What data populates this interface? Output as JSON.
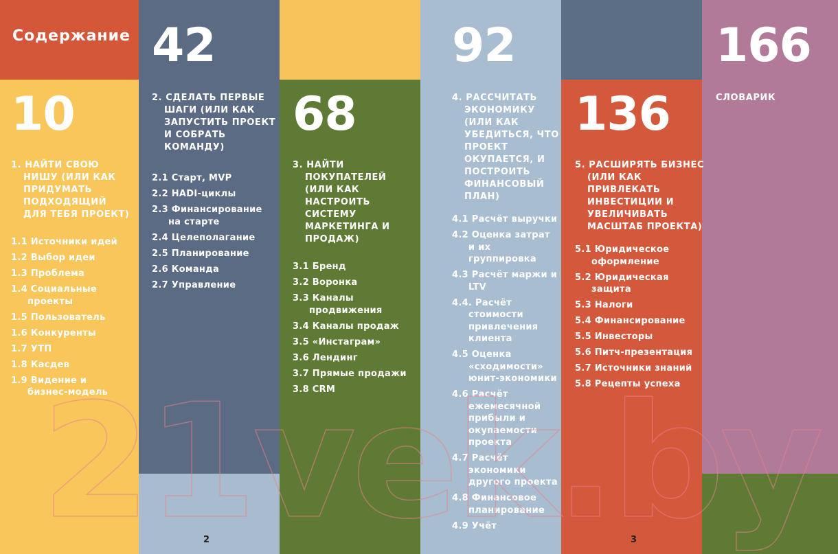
{
  "title": "Содержание",
  "sections": [
    {
      "page": "10",
      "heading": "1. НАЙТИ СВОЮ НИШУ (ИЛИ КАК ПРИДУМАТЬ ПОДХОДЯЩИЙ ДЛЯ ТЕБЯ ПРОЕКТ)",
      "items": [
        "1.1 Источники идей",
        "1.2 Выбор идеи",
        "1.3 Проблема",
        "1.4 Социальные проекты",
        "1.5 Пользователь",
        "1.6 Конкуренты",
        "1.7 УТП",
        "1.8 Касдев",
        "1.9 Видение и бизнес-модель"
      ]
    },
    {
      "page": "42",
      "heading": "2. СДЕЛАТЬ ПЕРВЫЕ ШАГИ (ИЛИ КАК ЗАПУСТИТЬ ПРОЕКТ И СОБРАТЬ КОМАНДУ)",
      "items": [
        "2.1 Старт, MVP",
        "2.2 HADI-циклы",
        "2.3 Финансирование на старте",
        "2.4 Целеполагание",
        "2.5 Планирование",
        "2.6 Команда",
        "2.7 Управление"
      ]
    },
    {
      "page": "68",
      "heading": "3. НАЙТИ ПОКУПАТЕЛЕЙ (ИЛИ КАК НАСТРОИТЬ СИСТЕМУ МАРКЕТИНГА И ПРОДАЖ)",
      "items": [
        "3.1 Бренд",
        "3.2 Воронка",
        "3.3 Каналы продвижения",
        "3.4 Каналы продаж",
        "3.5 «Инстаграм»",
        "3.6 Лендинг",
        "3.7 Прямые продажи",
        "3.8 CRM"
      ]
    },
    {
      "page": "92",
      "heading": "4. РАССЧИТАТЬ ЭКОНОМИКУ (ИЛИ КАК УБЕДИТЬСЯ, ЧТО ПРОЕКТ ОКУПАЕТСЯ, И ПОСТРОИТЬ ФИНАНСОВЫЙ ПЛАН)",
      "items": [
        "4.1 Расчёт выручки",
        "4.2 Оценка затрат и их группировка",
        "4.3 Расчёт маржи и LTV",
        "4.4. Расчёт стоимости привлечения клиента",
        "4.5 Оценка «сходимости» юнит-экономики",
        "4.6 Расчёт ежемесячной прибыли и окупаемости проекта",
        "4.7 Расчёт экономики другого проекта",
        "4.8 Финансовое планирование",
        "4.9 Учёт"
      ]
    },
    {
      "page": "136",
      "heading": "5. РАСШИРЯТЬ БИЗНЕС (ИЛИ КАК ПРИВЛЕКАТЬ ИНВЕСТИЦИИ И УВЕЛИЧИВАТЬ МАСШТАБ ПРОЕКТА)",
      "items": [
        "5.1 Юридическое оформление",
        "5.2 Юридическая защита",
        "5.3 Налоги",
        "5.4 Финансирование",
        "5.5 Инвесторы",
        "5.6 Питч-презентация",
        "5.7 Источники знаний",
        "5.8 Рецепты успеха"
      ]
    },
    {
      "page": "166",
      "heading": "СЛОВАРИК",
      "items": []
    }
  ],
  "page_numbers": [
    "2",
    "3"
  ],
  "watermark": "21vek.by"
}
